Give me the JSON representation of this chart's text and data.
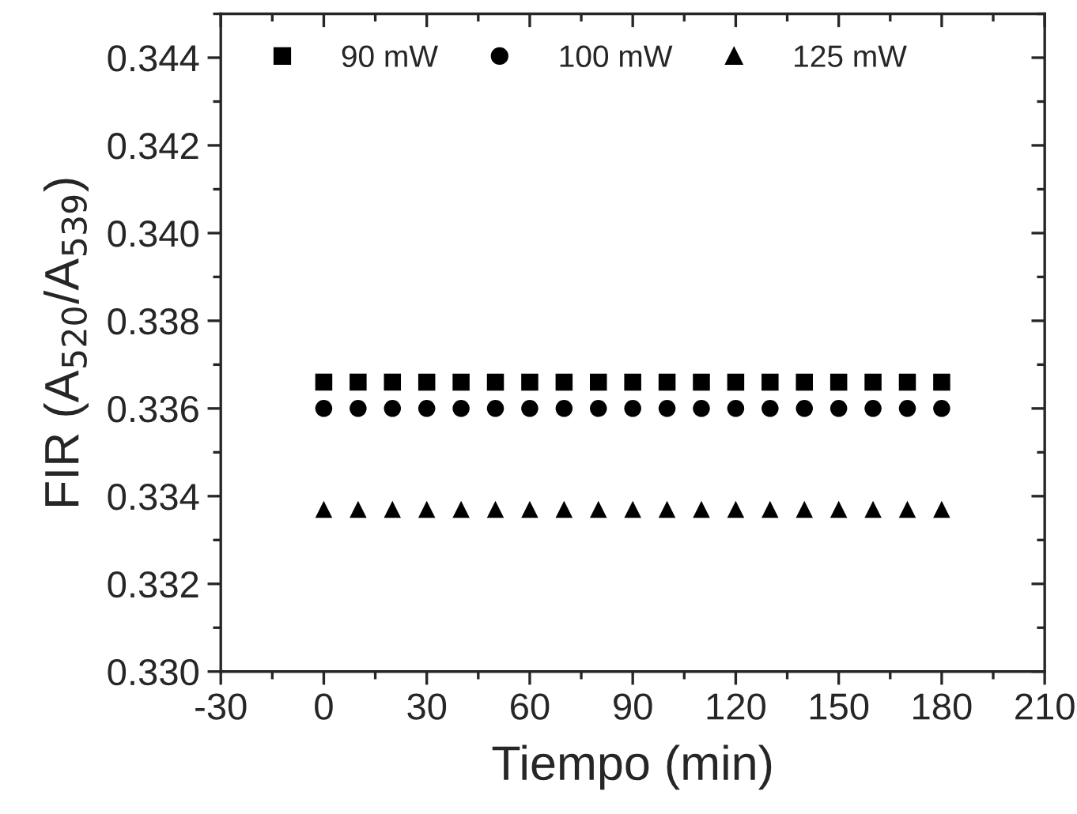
{
  "chart_data": {
    "type": "scatter",
    "xlabel": "Tiempo (min)",
    "ylabel": "FIR (A$_{520}$/A$_{539}$)",
    "x": [
      0,
      10,
      20,
      30,
      40,
      50,
      60,
      70,
      80,
      90,
      100,
      110,
      120,
      130,
      140,
      150,
      160,
      170,
      180
    ],
    "series": [
      {
        "name": "90 mW",
        "color": "#000000",
        "marker": "square",
        "values": [
          0.3366,
          0.3366,
          0.3366,
          0.3366,
          0.3366,
          0.3366,
          0.3366,
          0.3366,
          0.3366,
          0.3366,
          0.3366,
          0.3366,
          0.3366,
          0.3366,
          0.3366,
          0.3366,
          0.3366,
          0.3366,
          0.3366
        ]
      },
      {
        "name": "100 mW",
        "color": "#000000",
        "marker": "circle",
        "values": [
          0.336,
          0.336,
          0.336,
          0.336,
          0.336,
          0.336,
          0.336,
          0.336,
          0.336,
          0.336,
          0.336,
          0.336,
          0.336,
          0.336,
          0.336,
          0.336,
          0.336,
          0.336,
          0.336
        ]
      },
      {
        "name": "125 mW",
        "color": "#000000",
        "marker": "triangle",
        "values": [
          0.3337,
          0.3337,
          0.3337,
          0.3337,
          0.3337,
          0.3337,
          0.3337,
          0.3337,
          0.3337,
          0.3337,
          0.3337,
          0.3337,
          0.3337,
          0.3337,
          0.3337,
          0.3337,
          0.3337,
          0.3337,
          0.3337
        ]
      }
    ],
    "xlim": [
      -30,
      210
    ],
    "xticks": [
      -30,
      0,
      30,
      60,
      90,
      120,
      150,
      180,
      210
    ],
    "ylim": [
      0.33,
      0.345
    ],
    "yticks": [
      {
        "value": 0.33,
        "label": "0.330"
      },
      0.332,
      0.334,
      0.336,
      0.338,
      {
        "value": 0.34,
        "label": "0.340"
      },
      0.342,
      0.344
    ],
    "grid": false,
    "legend": "top left"
  }
}
